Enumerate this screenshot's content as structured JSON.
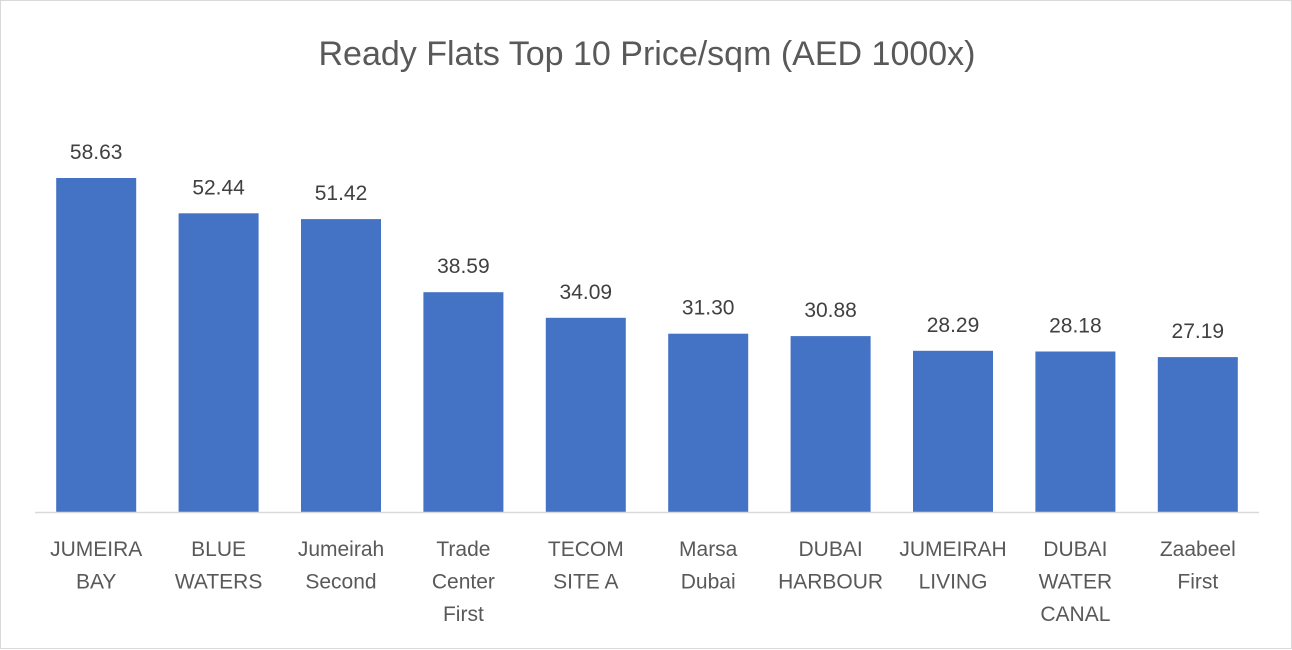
{
  "chart_data": {
    "type": "bar",
    "title": "Ready Flats Top 10 Price/sqm (AED 1000x)",
    "categories": [
      [
        "JUMEIRA",
        "BAY"
      ],
      [
        "BLUE",
        "WATERS"
      ],
      [
        "Jumeirah",
        "Second"
      ],
      [
        "Trade",
        "Center",
        "First"
      ],
      [
        "TECOM",
        "SITE A"
      ],
      [
        "Marsa",
        "Dubai"
      ],
      [
        "DUBAI",
        "HARBOUR"
      ],
      [
        "JUMEIRAH",
        "LIVING"
      ],
      [
        "DUBAI",
        "WATER",
        "CANAL"
      ],
      [
        "Zaabeel",
        "First"
      ]
    ],
    "values": [
      58.63,
      52.44,
      51.42,
      38.59,
      34.09,
      31.3,
      30.88,
      28.29,
      28.18,
      27.19
    ],
    "value_labels": [
      "58.63",
      "52.44",
      "51.42",
      "38.59",
      "34.09",
      "31.30",
      "30.88",
      "28.29",
      "28.18",
      "27.19"
    ],
    "xlabel": "",
    "ylabel": "",
    "ylim": [
      0,
      58.63
    ],
    "grid": false,
    "legend": "none",
    "colors": {
      "bar": "#4472C4",
      "axis": "#d9d9d9"
    }
  }
}
